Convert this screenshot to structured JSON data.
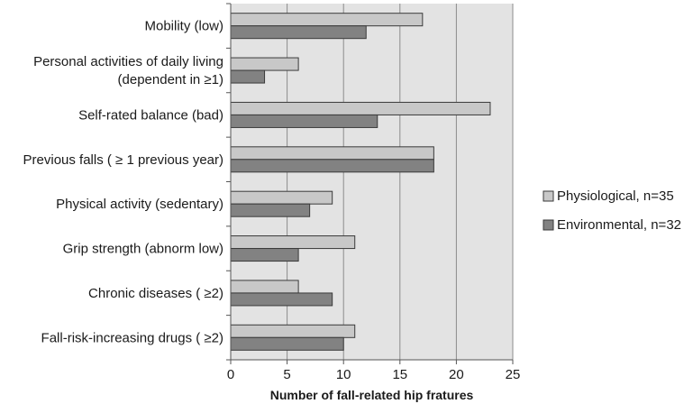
{
  "chart_data": {
    "type": "bar",
    "orientation": "horizontal",
    "categories": [
      [
        "Mobility (low)"
      ],
      [
        "Personal activities of daily living",
        "(dependent in ≥1)"
      ],
      [
        "Self-rated balance (bad)"
      ],
      [
        "Previous falls ( ≥ 1  previous year)"
      ],
      [
        "Physical activity (sedentary)"
      ],
      [
        "Grip strength (abnorm low)"
      ],
      [
        "Chronic diseases ( ≥2)"
      ],
      [
        "Fall-risk-increasing drugs  ( ≥2)"
      ]
    ],
    "series": [
      {
        "name": "Physiological, n=35",
        "color": "#c8c8c8",
        "values": [
          17,
          6,
          23,
          18,
          9,
          11,
          6,
          11
        ]
      },
      {
        "name": "Environmental, n=32",
        "color": "#828282",
        "values": [
          12,
          3,
          13,
          18,
          7,
          6,
          9,
          10
        ]
      }
    ],
    "xlabel": "Number of fall-related hip fratures",
    "xlim": [
      0,
      25
    ],
    "xticks": [
      0,
      5,
      10,
      15,
      20,
      25
    ],
    "grid": true,
    "plot_background": "#e3e3e3",
    "legend_position": "right"
  }
}
